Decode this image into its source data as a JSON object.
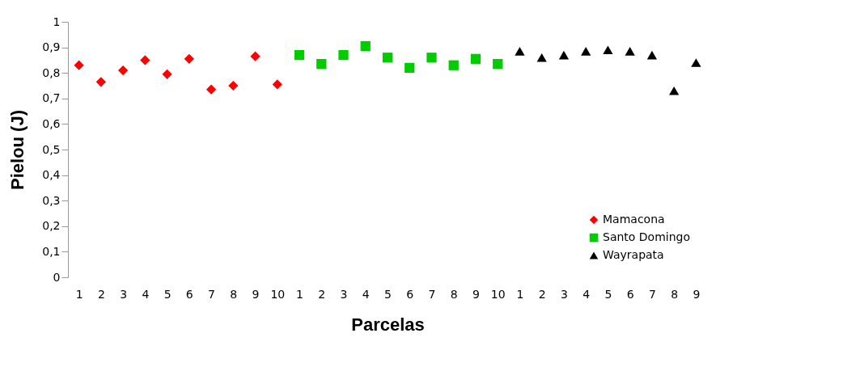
{
  "chart_data": {
    "type": "scatter",
    "xlabel": "Parcelas",
    "ylabel": "Pielou (J)",
    "categories": [
      "1",
      "2",
      "3",
      "4",
      "5",
      "6",
      "7",
      "8",
      "9",
      "10",
      "1",
      "2",
      "3",
      "4",
      "5",
      "6",
      "7",
      "8",
      "9",
      "10",
      "1",
      "2",
      "3",
      "4",
      "5",
      "6",
      "7",
      "8",
      "9"
    ],
    "series": [
      {
        "name": "Mamacona",
        "color": "#ff0000",
        "marker": "diamond",
        "values": [
          0.83,
          0.765,
          0.81,
          0.85,
          0.795,
          0.855,
          0.735,
          0.75,
          0.865,
          0.755,
          null,
          null,
          null,
          null,
          null,
          null,
          null,
          null,
          null,
          null,
          null,
          null,
          null,
          null,
          null,
          null,
          null,
          null,
          null
        ]
      },
      {
        "name": "Santo Domingo",
        "color": "#00cc00",
        "marker": "square",
        "values": [
          null,
          null,
          null,
          null,
          null,
          null,
          null,
          null,
          null,
          null,
          0.87,
          0.835,
          0.87,
          0.905,
          0.86,
          0.82,
          0.86,
          0.83,
          0.855,
          0.835,
          null,
          null,
          null,
          null,
          null,
          null,
          null,
          null,
          null
        ]
      },
      {
        "name": "Wayrapata",
        "color": "#000000",
        "marker": "triangle",
        "values": [
          null,
          null,
          null,
          null,
          null,
          null,
          null,
          null,
          null,
          null,
          null,
          null,
          null,
          null,
          null,
          null,
          null,
          null,
          null,
          null,
          0.885,
          0.86,
          0.87,
          0.885,
          0.89,
          0.885,
          0.87,
          0.73,
          0.84
        ]
      }
    ],
    "ylim": [
      0,
      1
    ],
    "yticks": [
      0,
      {
        "value": 0.1,
        "label": "0,1"
      },
      {
        "value": 0.2,
        "label": "0,2"
      },
      {
        "value": 0.3,
        "label": "0,3"
      },
      {
        "value": 0.4,
        "label": "0,4"
      },
      {
        "value": 0.5,
        "label": "0,5"
      },
      {
        "value": 0.6,
        "label": "0,6"
      },
      {
        "value": 0.7,
        "label": "0,7"
      },
      {
        "value": 0.8,
        "label": "0,8"
      },
      {
        "value": 0.9,
        "label": "0,9"
      },
      1
    ],
    "legend": "bottom right",
    "grid": false
  }
}
